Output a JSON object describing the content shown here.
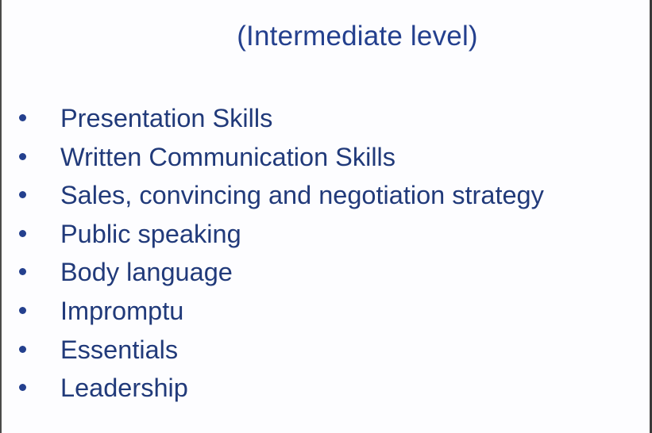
{
  "slide": {
    "title": "(Intermediate level)",
    "bullets": [
      "Presentation Skills",
      "Written Communication Skills",
      "Sales, convincing and negotiation strategy",
      "Public speaking",
      "Body language",
      "Impromptu",
      "Essentials",
      "Leadership"
    ]
  },
  "colors": {
    "text": "#213a7a",
    "title": "#24408e",
    "background": "#fdfdff"
  }
}
